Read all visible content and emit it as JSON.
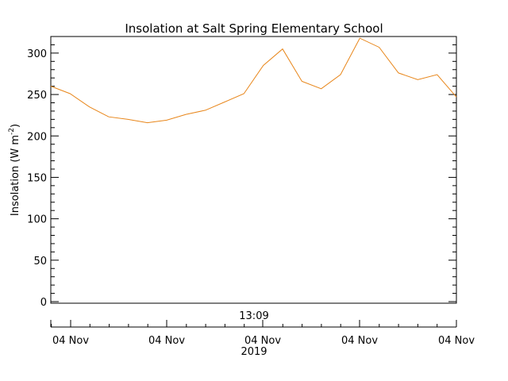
{
  "chart_data": {
    "type": "line",
    "title": "Insolation at Salt Spring Elementary School",
    "ylabel_main": "Insolation (W m",
    "ylabel_sup": "-2",
    "ylabel_close": ")",
    "ylim": [
      0,
      320
    ],
    "yticks": [
      0,
      50,
      100,
      150,
      200,
      250,
      300
    ],
    "ytick_labels": [
      "0",
      "50",
      "100",
      "150",
      "200",
      "250",
      "300"
    ],
    "time_marker_label": "13:09",
    "xtick_labels": [
      "04 Nov",
      "04 Nov",
      "04 Nov",
      "04 Nov",
      "04 Nov"
    ],
    "xyear_label": "2019",
    "grid": false,
    "line_color": "#e8861a",
    "series": [
      {
        "values": [
          260,
          251,
          235,
          223,
          220,
          216,
          219,
          226,
          231,
          241,
          251,
          285,
          305,
          266,
          257,
          274,
          318,
          307,
          276,
          268,
          274,
          247
        ]
      }
    ]
  }
}
